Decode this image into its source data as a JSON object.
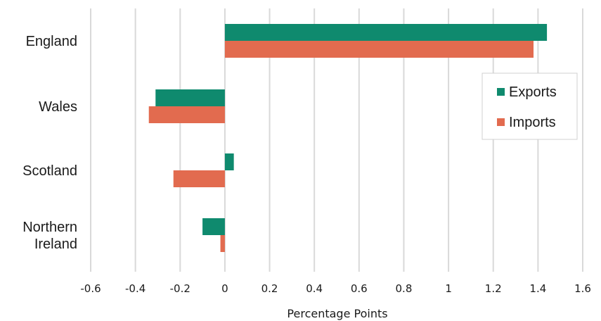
{
  "chart_data": {
    "type": "bar",
    "orientation": "horizontal",
    "categories": [
      "England",
      "Wales",
      "Scotland",
      "Northern Ireland"
    ],
    "category_display": {
      "England": [
        "England"
      ],
      "Wales": [
        "Wales"
      ],
      "Scotland": [
        "Scotland"
      ],
      "Northern Ireland": [
        "Northern",
        "Ireland"
      ]
    },
    "series": [
      {
        "name": "Exports",
        "color": "#0f8a6e",
        "values": [
          1.44,
          -0.31,
          0.04,
          -0.1
        ]
      },
      {
        "name": "Imports",
        "color": "#e26b4f",
        "values": [
          1.38,
          -0.34,
          -0.23,
          -0.02
        ]
      }
    ],
    "xlabel": "Percentage Points",
    "xlim": [
      -0.6,
      1.6
    ],
    "xticks": [
      -0.6,
      -0.4,
      -0.2,
      0,
      0.2,
      0.4,
      0.6,
      0.8,
      1,
      1.2,
      1.4,
      1.6
    ],
    "xtick_labels": [
      "-0.6",
      "-0.4",
      "-0.2",
      "0",
      "0.2",
      "0.4",
      "0.6",
      "0.8",
      "1",
      "1.2",
      "1.4",
      "1.6"
    ],
    "grid": true,
    "legend_position": "right"
  }
}
